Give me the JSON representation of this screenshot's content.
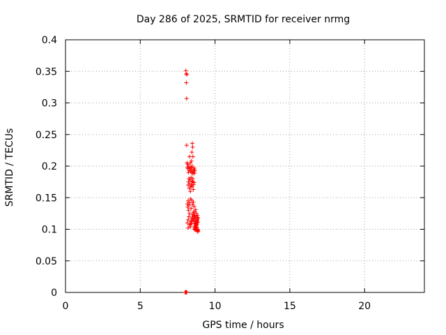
{
  "chart_data": {
    "type": "scatter",
    "title": "Day 286 of 2025, SRMTID for receiver nrmg",
    "xlabel": "GPS time / hours",
    "ylabel": "SRMTID / TECUs",
    "xlim": [
      0,
      24
    ],
    "ylim": [
      0,
      0.4
    ],
    "xticks": [
      0,
      5,
      10,
      15,
      20
    ],
    "yticks": [
      0,
      0.05,
      0.1,
      0.15,
      0.2,
      0.25,
      0.3,
      0.35,
      0.4
    ],
    "grid": true,
    "marker": "+",
    "color": "#ff0000",
    "series": [
      {
        "x": [
          8.05,
          8.07,
          8.08,
          8.1,
          8.12,
          8.1,
          8.12,
          8.15,
          8.18,
          8.2,
          8.22,
          8.25,
          8.28,
          8.3,
          8.33,
          8.35,
          8.37,
          8.4,
          8.42,
          8.45,
          8.47,
          8.5,
          8.52,
          8.55,
          8.58,
          8.6,
          8.62,
          8.65,
          8.2,
          8.22,
          8.25,
          8.28,
          8.3,
          8.32,
          8.35,
          8.38,
          8.4,
          8.42,
          8.45,
          8.48,
          8.5,
          8.52,
          8.55,
          8.57,
          8.6,
          8.15,
          8.18,
          8.2,
          8.22,
          8.25,
          8.3,
          8.35,
          8.4,
          8.45,
          8.5,
          8.55,
          8.6,
          8.65,
          8.7,
          8.75,
          8.6,
          8.62,
          8.65,
          8.68,
          8.7,
          8.72,
          8.75,
          8.78,
          8.8,
          8.82,
          8.85,
          8.87,
          8.7,
          8.72,
          8.75,
          8.78,
          8.8,
          8.65,
          8.68,
          8.7,
          8.72,
          8.75,
          8.78,
          8.8,
          8.82,
          8.85,
          8.62,
          8.66,
          8.7,
          8.74,
          8.78,
          8.82,
          8.86,
          8.64,
          8.68,
          8.72,
          8.76,
          8.8,
          8.84,
          8.15,
          8.2,
          8.25,
          8.3,
          8.35,
          8.4,
          8.45,
          8.5,
          8.55,
          8.2,
          8.3,
          8.4,
          8.5,
          8.6,
          8.35,
          8.45,
          8.55,
          8.48,
          8.5,
          8.52,
          8.45,
          8.42,
          8.0,
          8.02,
          8.04,
          8.06,
          8.08,
          8.1
        ],
        "y": [
          0.351,
          0.346,
          0.332,
          0.307,
          0.345,
          0.233,
          0.205,
          0.198,
          0.203,
          0.196,
          0.19,
          0.2,
          0.193,
          0.215,
          0.197,
          0.205,
          0.192,
          0.198,
          0.19,
          0.195,
          0.2,
          0.19,
          0.188,
          0.192,
          0.195,
          0.197,
          0.189,
          0.193,
          0.17,
          0.175,
          0.18,
          0.165,
          0.172,
          0.178,
          0.16,
          0.167,
          0.182,
          0.17,
          0.175,
          0.168,
          0.176,
          0.18,
          0.163,
          0.171,
          0.174,
          0.14,
          0.135,
          0.145,
          0.13,
          0.138,
          0.142,
          0.148,
          0.133,
          0.146,
          0.139,
          0.143,
          0.136,
          0.128,
          0.131,
          0.125,
          0.12,
          0.118,
          0.115,
          0.112,
          0.11,
          0.108,
          0.105,
          0.103,
          0.1,
          0.098,
          0.096,
          0.099,
          0.102,
          0.107,
          0.11,
          0.113,
          0.117,
          0.104,
          0.101,
          0.106,
          0.109,
          0.111,
          0.114,
          0.119,
          0.122,
          0.097,
          0.1,
          0.103,
          0.106,
          0.109,
          0.112,
          0.115,
          0.118,
          0.121,
          0.099,
          0.102,
          0.105,
          0.108,
          0.111,
          0.11,
          0.115,
          0.12,
          0.125,
          0.108,
          0.113,
          0.118,
          0.123,
          0.127,
          0.102,
          0.107,
          0.112,
          0.117,
          0.122,
          0.104,
          0.109,
          0.114,
          0.236,
          0.23,
          0.215,
          0.222,
          0.208,
          0.0,
          0.0,
          0.0,
          0.0,
          0.001,
          0.0
        ]
      }
    ]
  }
}
